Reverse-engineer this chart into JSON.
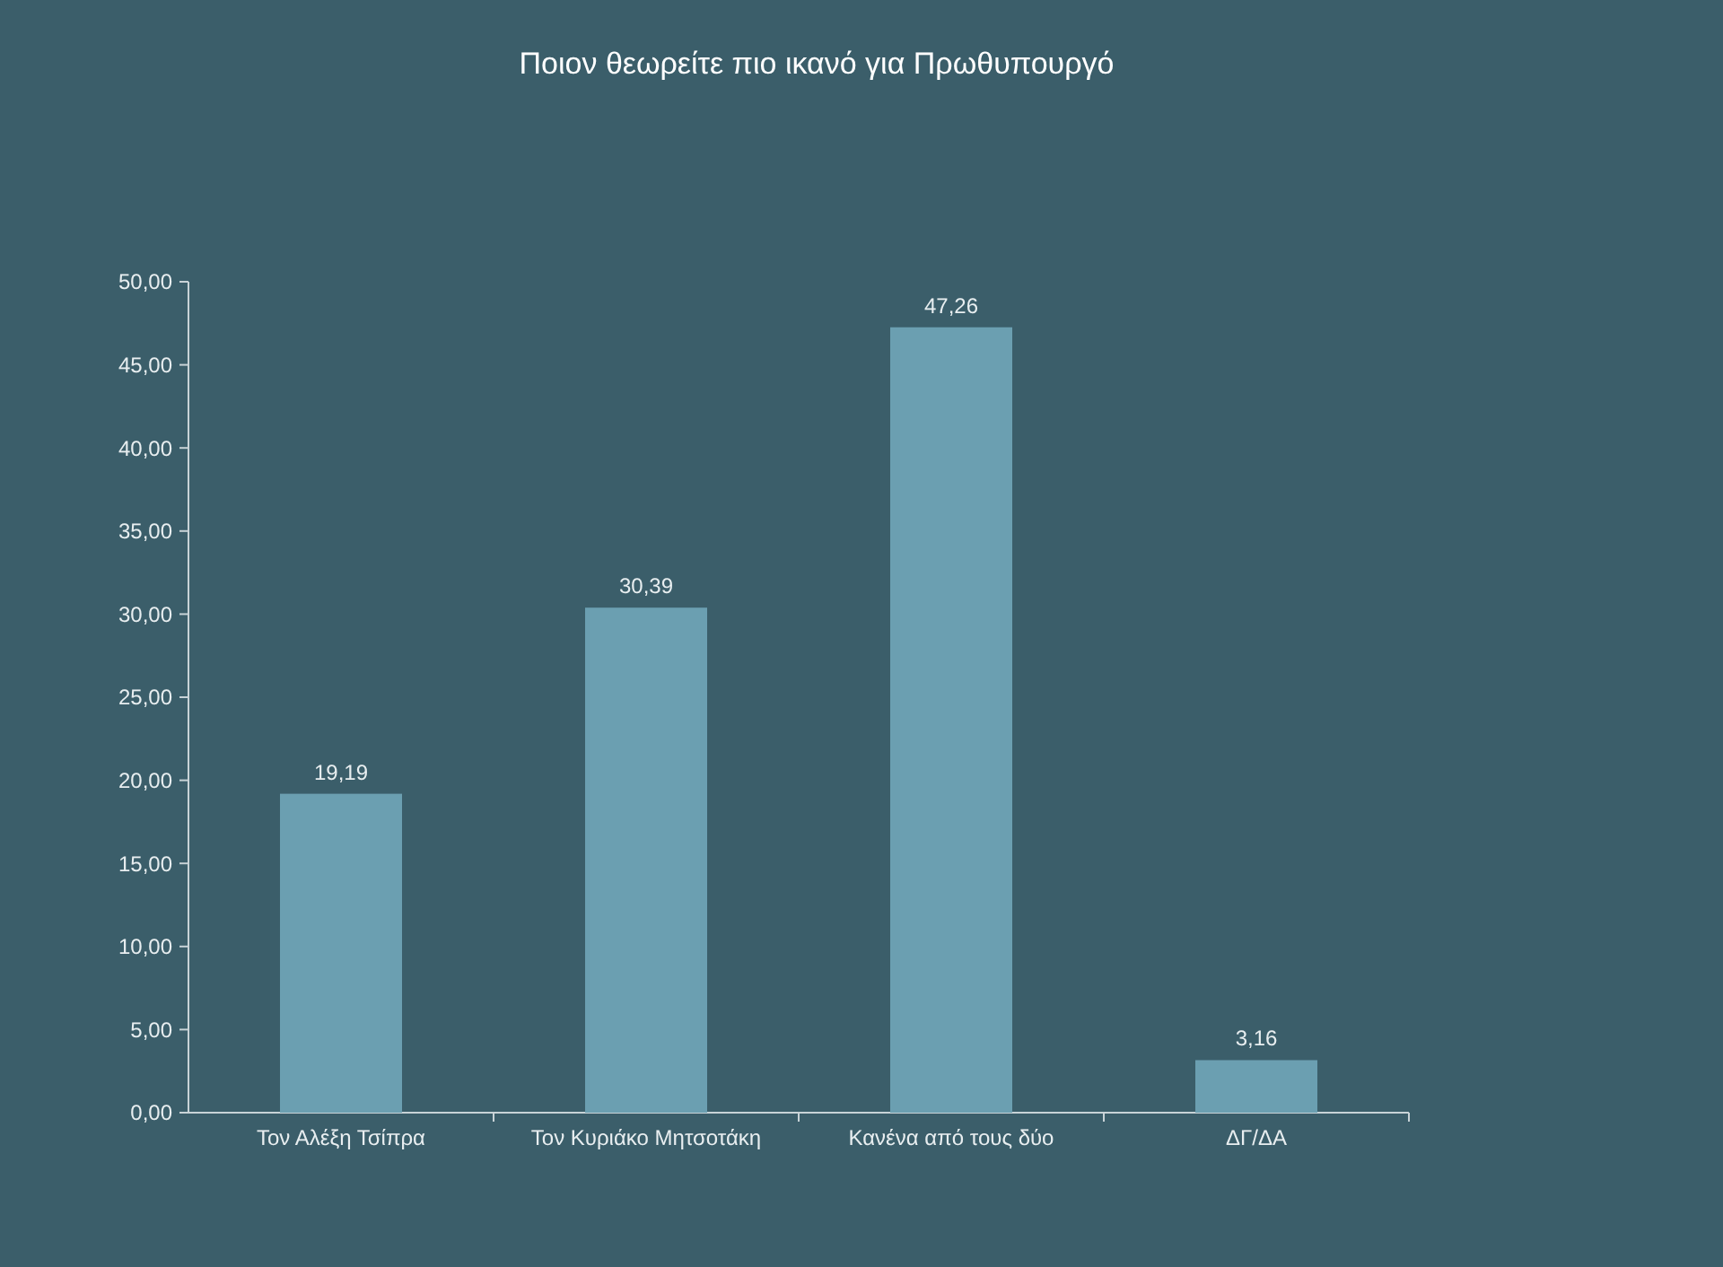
{
  "chart_data": {
    "type": "bar",
    "title": "Ποιον θεωρείτε πιο ικανό για Πρωθυπουργό",
    "categories": [
      "Τον Αλέξη Τσίπρα",
      "Τον Κυριάκο Μητσοτάκη",
      "Κανένα από τους δύο",
      "ΔΓ/ΔΑ"
    ],
    "values": [
      19.19,
      30.39,
      47.26,
      3.16
    ],
    "value_labels": [
      "19,19",
      "30,39",
      "47,26",
      "3,16"
    ],
    "color": "#6b9fb1",
    "ylim": [
      0,
      50
    ],
    "yticks": [
      {
        "value": 0,
        "label": "0,00"
      },
      {
        "value": 5,
        "label": "5,00"
      },
      {
        "value": 10,
        "label": "10,00"
      },
      {
        "value": 15,
        "label": "15,00"
      },
      {
        "value": 20,
        "label": "20,00"
      },
      {
        "value": 25,
        "label": "25,00"
      },
      {
        "value": 30,
        "label": "30,00"
      },
      {
        "value": 35,
        "label": "35,00"
      },
      {
        "value": 40,
        "label": "40,00"
      },
      {
        "value": 45,
        "label": "45,00"
      },
      {
        "value": 50,
        "label": "50,00"
      }
    ],
    "grid": false
  }
}
